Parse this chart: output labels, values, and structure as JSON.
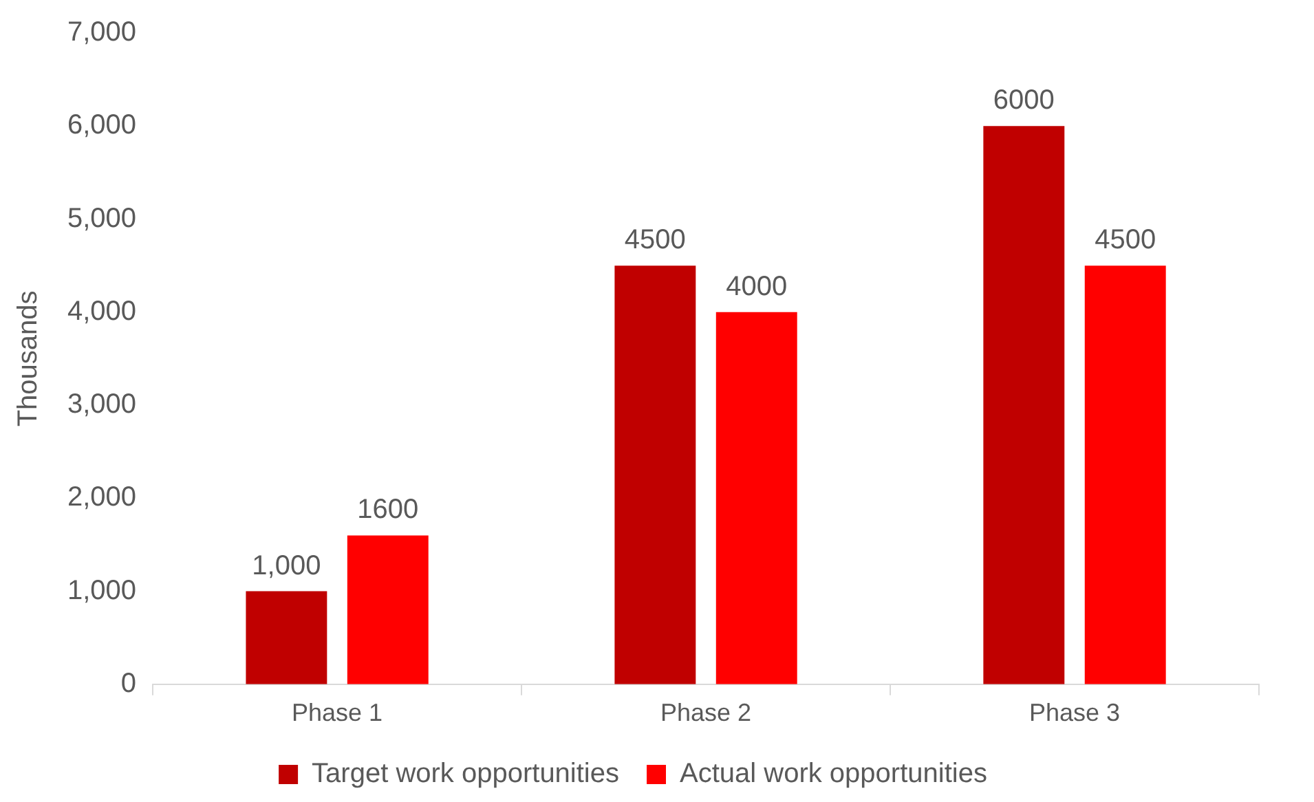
{
  "chart_data": {
    "type": "bar",
    "ylabel": "Thousands",
    "categories": [
      "Phase 1",
      "Phase 2",
      "Phase 3"
    ],
    "series": [
      {
        "name": "Target work opportunities",
        "color": "#c00000",
        "values": [
          1000,
          4500,
          6000
        ],
        "value_labels": [
          "1,000",
          "4500",
          "6000"
        ]
      },
      {
        "name": "Actual work opportunities",
        "color": "#ff0000",
        "values": [
          1600,
          4000,
          4500
        ],
        "value_labels": [
          "1600",
          "4000",
          "4500"
        ]
      }
    ],
    "ylim": [
      0,
      7000
    ],
    "yticks": [
      0,
      {
        "value": 1000,
        "label": "1,000"
      },
      {
        "value": 2000,
        "label": "2,000"
      },
      {
        "value": 3000,
        "label": "3,000"
      },
      {
        "value": 4000,
        "label": "4,000"
      },
      {
        "value": 5000,
        "label": "5,000"
      },
      {
        "value": 6000,
        "label": "6,000"
      },
      {
        "value": 7000,
        "label": "7,000"
      }
    ],
    "legend": "bottom"
  }
}
